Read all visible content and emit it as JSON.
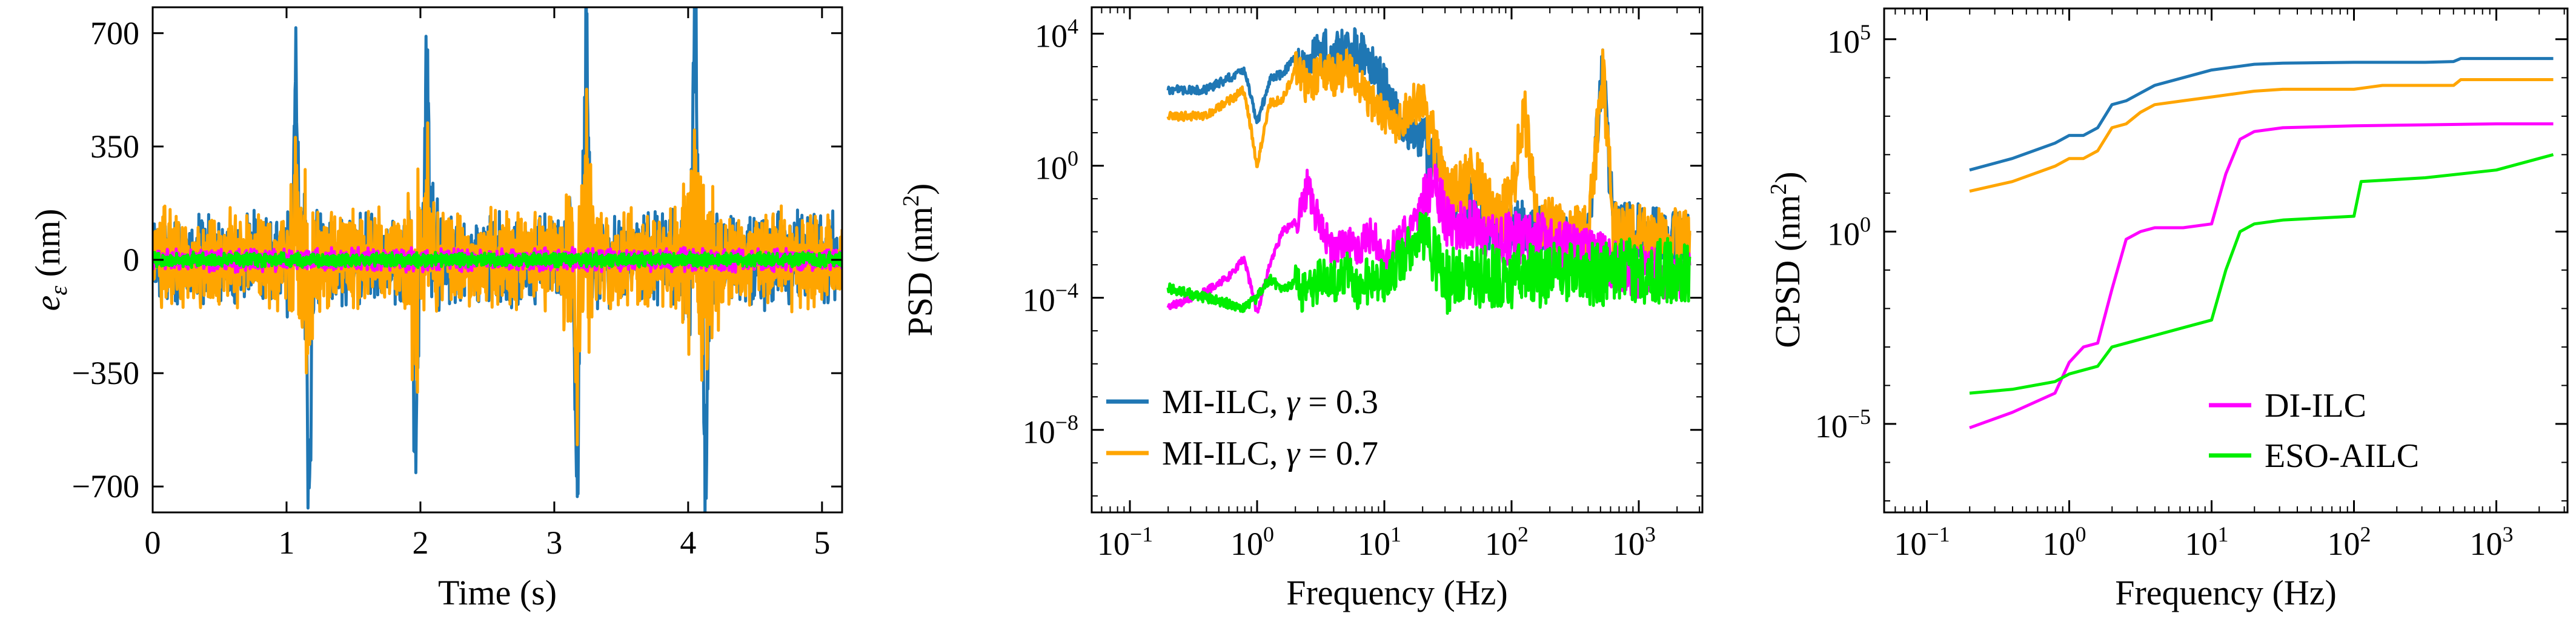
{
  "chart_data": [
    {
      "type": "line",
      "xlabel": "Time (s)",
      "ylabel_symbol": "e",
      "ylabel_subscript": "ε",
      "ylabel_unit": " (nm)",
      "xlim": [
        0,
        5.15
      ],
      "ylim": [
        -780,
        780
      ],
      "xticks": [
        0,
        1,
        2,
        3,
        4,
        5
      ],
      "xtick_labels": [
        "0",
        "1",
        "2",
        "3",
        "4",
        "5"
      ],
      "yticks": [
        -700,
        -350,
        0,
        350,
        700
      ],
      "ytick_labels": [
        "−700",
        "−350",
        "0",
        "350",
        "700"
      ],
      "spikes": [
        {
          "t": 1.07,
          "pos_peak": 640,
          "neg_t": 1.17,
          "neg_peak": -690,
          "pos2_peak": 240,
          "neg2_peak": -330
        },
        {
          "t": 2.05,
          "pos_peak": 655,
          "neg_t": 1.96,
          "neg_peak": -580,
          "pos2_peak": 270,
          "neg2_peak": -280
        },
        {
          "t": 3.24,
          "pos_peak": 680,
          "neg_t": 3.17,
          "neg_peak": -685,
          "pos2_peak": 260,
          "neg2_peak": -310
        },
        {
          "t": 4.05,
          "pos_peak": 775,
          "neg_t": 4.13,
          "neg_peak": -640,
          "pos2_peak": 300,
          "neg2_peak": -290
        }
      ],
      "series": [
        {
          "name": "MI-ILC, γ = 0.3",
          "color": "#1f77b4",
          "noise_amplitude_nm": 160,
          "spike_scale": 1.0
        },
        {
          "name": "MI-ILC, γ = 0.7",
          "color": "#ffa500",
          "noise_amplitude_nm": 175,
          "spike_scale": 0.35
        },
        {
          "name": "DI-ILC",
          "color": "#ff00ff",
          "noise_amplitude_nm": 40,
          "spike_scale": 0
        },
        {
          "name": "ESO-AILC",
          "color": "#00ee00",
          "noise_amplitude_nm": 25,
          "spike_scale": 0
        }
      ]
    },
    {
      "type": "line",
      "xscale": "log",
      "yscale": "log",
      "xlabel": "Frequency (Hz)",
      "ylabel": "PSD (nm",
      "ylabel_sup": "2",
      "ylabel_close": ")",
      "xlim_log10": [
        -1.3,
        3.5
      ],
      "ylim_log10": [
        -10.5,
        4.8
      ],
      "xticks_log10": [
        -1,
        0,
        1,
        2,
        3
      ],
      "xtick_base": "10",
      "xtick_exponents": [
        "−1",
        "0",
        "1",
        "2",
        "3"
      ],
      "yticks_log10": [
        -8,
        -4,
        0,
        4
      ],
      "ytick_base": "10",
      "ytick_exponents": [
        "−8",
        "−4",
        "0",
        "4"
      ],
      "legend": [
        {
          "text": "MI-ILC, ",
          "symbol": "γ",
          "value": " = 0.3",
          "color": "#1f77b4"
        },
        {
          "text": "MI-ILC, ",
          "symbol": "γ",
          "value": " = 0.7",
          "color": "#ffa500"
        }
      ],
      "legend_position": "lower-left",
      "series": [
        {
          "name": "MI-ILC, γ = 0.3",
          "color": "#1f77b4",
          "log10_f": [
            -0.7,
            -0.4,
            -0.1,
            0.0,
            0.1,
            0.2,
            0.3,
            0.4,
            0.5,
            0.6,
            0.7,
            0.8,
            0.9,
            1.0,
            1.1,
            1.2,
            1.3,
            1.4,
            1.5,
            1.7,
            1.9,
            2.0,
            2.1,
            2.2,
            2.4,
            2.6,
            2.72,
            2.8,
            3.0,
            3.2,
            3.4
          ],
          "log10_psd": [
            2.3,
            2.3,
            2.9,
            1.3,
            2.6,
            2.8,
            3.3,
            3.0,
            3.6,
            3.4,
            3.7,
            3.5,
            3.0,
            2.5,
            1.5,
            1.0,
            0.8,
            0.0,
            -1.0,
            -1.3,
            -2.0,
            -2.0,
            -1.8,
            -2.0,
            -2.2,
            -2.2,
            3.0,
            -2.0,
            -2.0,
            -2.2,
            -2.2
          ],
          "noise_dex": 0.9
        },
        {
          "name": "MI-ILC, γ = 0.7",
          "color": "#ffa500",
          "log10_f": [
            -0.7,
            -0.4,
            -0.1,
            0.0,
            0.1,
            0.2,
            0.3,
            0.4,
            0.5,
            0.6,
            0.7,
            0.8,
            0.9,
            1.0,
            1.1,
            1.2,
            1.3,
            1.4,
            1.5,
            1.7,
            1.9,
            2.0,
            2.1,
            2.2,
            2.4,
            2.6,
            2.72,
            2.8,
            3.0,
            3.2,
            3.4
          ],
          "log10_psd": [
            1.5,
            1.5,
            2.3,
            0.0,
            1.9,
            2.0,
            2.9,
            2.4,
            2.8,
            2.7,
            2.9,
            2.4,
            2.0,
            1.5,
            1.3,
            1.8,
            2.0,
            0.5,
            -1.0,
            -0.3,
            -1.6,
            -1.0,
            1.6,
            -1.6,
            -2.0,
            -2.1,
            2.9,
            -2.0,
            -2.0,
            -2.2,
            -2.2
          ],
          "noise_dex": 0.9
        },
        {
          "name": "DI-ILC",
          "color": "#ff00ff",
          "log10_f": [
            -0.7,
            -0.4,
            -0.2,
            -0.1,
            0.0,
            0.1,
            0.2,
            0.3,
            0.4,
            0.5,
            0.6,
            0.7,
            0.8,
            0.9,
            1.0,
            1.1,
            1.2,
            1.3,
            1.4,
            1.5,
            1.7,
            1.9,
            2.0,
            2.2,
            2.4,
            2.6,
            2.8,
            3.0,
            3.2,
            3.4
          ],
          "log10_psd": [
            -4.3,
            -3.8,
            -3.3,
            -2.8,
            -4.5,
            -3.0,
            -2.0,
            -1.7,
            -0.6,
            -2.0,
            -2.6,
            -2.3,
            -2.5,
            -2.0,
            -3.0,
            -2.2,
            -2.0,
            -1.2,
            -0.5,
            -1.8,
            -1.8,
            -2.2,
            -2.2,
            -2.2,
            -2.4,
            -2.6,
            -3.0,
            -3.2,
            -3.3,
            -3.3
          ],
          "noise_dex": 0.8
        },
        {
          "name": "ESO-AILC",
          "color": "#00ee00",
          "log10_f": [
            -0.7,
            -0.4,
            -0.2,
            -0.1,
            0.0,
            0.1,
            0.2,
            0.3,
            0.4,
            0.5,
            0.6,
            0.7,
            0.8,
            0.9,
            1.0,
            1.1,
            1.2,
            1.3,
            1.4,
            1.5,
            1.7,
            1.9,
            2.0,
            2.2,
            2.4,
            2.6,
            2.8,
            3.0,
            3.2,
            3.4
          ],
          "log10_psd": [
            -3.7,
            -4.0,
            -4.2,
            -4.3,
            -4.0,
            -3.4,
            -3.8,
            -3.5,
            -4.0,
            -3.3,
            -3.5,
            -3.2,
            -3.7,
            -3.4,
            -3.5,
            -3.0,
            -2.5,
            -2.0,
            -2.8,
            -3.5,
            -3.3,
            -3.4,
            -3.4,
            -3.3,
            -3.3,
            -3.3,
            -3.2,
            -3.2,
            -3.2,
            -3.2
          ],
          "noise_dex": 1.0
        }
      ]
    },
    {
      "type": "line",
      "xscale": "log",
      "yscale": "log",
      "xlabel": "Frequency (Hz)",
      "ylabel": "CPSD (nm",
      "ylabel_sup": "2",
      "ylabel_close": ")",
      "xlim_log10": [
        -1.3,
        3.5
      ],
      "ylim_log10": [
        -7.3,
        5.8
      ],
      "xticks_log10": [
        -1,
        0,
        1,
        2,
        3
      ],
      "xtick_base": "10",
      "xtick_exponents": [
        "−1",
        "0",
        "1",
        "2",
        "3"
      ],
      "yticks_log10": [
        -5,
        0,
        5
      ],
      "ytick_base": "10",
      "ytick_exponents": [
        "−5",
        "0",
        "5"
      ],
      "legend": [
        {
          "text": "DI-ILC",
          "color": "#ff00ff"
        },
        {
          "text": "ESO-AILC",
          "color": "#00ee00"
        }
      ],
      "legend_position": "lower-right",
      "series": [
        {
          "name": "MI-ILC, γ = 0.3",
          "color": "#1f77b4",
          "log10_f": [
            -0.7,
            -0.4,
            -0.1,
            0.0,
            0.1,
            0.2,
            0.3,
            0.4,
            0.5,
            0.6,
            0.8,
            1.0,
            1.2,
            1.3,
            1.5,
            2.0,
            2.5,
            2.7,
            2.75,
            3.0,
            3.4
          ],
          "log10_cpsd": [
            1.6,
            1.9,
            2.3,
            2.5,
            2.5,
            2.7,
            3.3,
            3.4,
            3.6,
            3.8,
            4.0,
            4.2,
            4.3,
            4.35,
            4.38,
            4.4,
            4.4,
            4.42,
            4.5,
            4.5,
            4.5
          ]
        },
        {
          "name": "MI-ILC, γ = 0.7",
          "color": "#ffa500",
          "log10_f": [
            -0.7,
            -0.4,
            -0.1,
            0.0,
            0.1,
            0.2,
            0.3,
            0.4,
            0.5,
            0.6,
            0.8,
            1.0,
            1.2,
            1.3,
            1.5,
            2.0,
            2.1,
            2.2,
            2.5,
            2.7,
            2.75,
            3.0,
            3.4
          ],
          "log10_cpsd": [
            1.05,
            1.3,
            1.7,
            1.9,
            1.9,
            2.1,
            2.7,
            2.8,
            3.1,
            3.3,
            3.4,
            3.5,
            3.6,
            3.65,
            3.7,
            3.7,
            3.75,
            3.8,
            3.8,
            3.8,
            3.95,
            3.95,
            3.95
          ]
        },
        {
          "name": "DI-ILC",
          "color": "#ff00ff",
          "log10_f": [
            -0.7,
            -0.4,
            -0.1,
            0.0,
            0.1,
            0.2,
            0.3,
            0.4,
            0.5,
            0.6,
            0.8,
            1.0,
            1.1,
            1.2,
            1.3,
            1.5,
            2.0,
            3.0,
            3.4
          ],
          "log10_cpsd": [
            -5.1,
            -4.7,
            -4.2,
            -3.4,
            -3.0,
            -2.9,
            -1.5,
            -0.2,
            0.0,
            0.1,
            0.1,
            0.2,
            1.5,
            2.4,
            2.6,
            2.7,
            2.75,
            2.8,
            2.8
          ]
        },
        {
          "name": "ESO-AILC",
          "color": "#00ee00",
          "log10_f": [
            -0.7,
            -0.4,
            -0.1,
            0.0,
            0.2,
            0.3,
            0.5,
            0.8,
            1.0,
            1.1,
            1.2,
            1.3,
            1.5,
            2.0,
            2.05,
            2.5,
            3.0,
            3.4
          ],
          "log10_cpsd": [
            -4.2,
            -4.1,
            -3.9,
            -3.7,
            -3.5,
            -3.0,
            -2.8,
            -2.5,
            -2.3,
            -1.0,
            0.0,
            0.2,
            0.3,
            0.4,
            1.3,
            1.4,
            1.6,
            2.0
          ]
        }
      ]
    }
  ]
}
